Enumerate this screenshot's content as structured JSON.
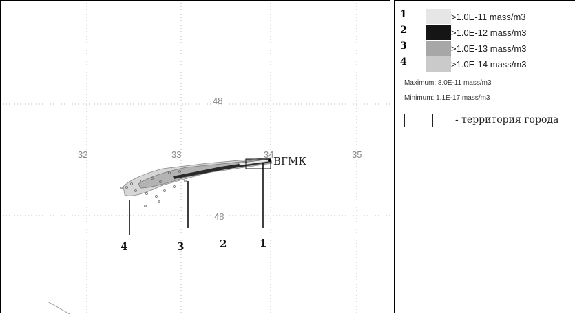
{
  "legend": {
    "items": [
      {
        "num": "1",
        "label": ">1.0E-11 mass/m3",
        "color": "#e6e6e6"
      },
      {
        "num": "2",
        "label": ">1.0E-12 mass/m3",
        "color": "#151515"
      },
      {
        "num": "3",
        "label": ">1.0E-13 mass/m3",
        "color": "#a7a7a7"
      },
      {
        "num": "4",
        "label": ">1.0E-14 mass/m3",
        "color": "#cacaca"
      }
    ],
    "maximum": "Maximum: 8.0E-11 mass/m3",
    "minimum": "Minimum: 1.1E-17 mass/m3",
    "boundary_label": "- территория города"
  },
  "map": {
    "lat_labels": [
      "48",
      "48"
    ],
    "lon_labels": [
      "32",
      "33",
      "34",
      "35"
    ],
    "place_label": "ВГМК",
    "zone_markers": [
      "4",
      "3",
      "2",
      "1"
    ]
  }
}
